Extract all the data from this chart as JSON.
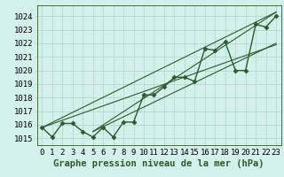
{
  "xlabel": "Graphe pression niveau de la mer (hPa)",
  "bg_color": "#d4f0ea",
  "grid_color": "#aed4cc",
  "line_color": "#2d5a2d",
  "ylim": [
    1014.5,
    1024.8
  ],
  "xlim": [
    -0.5,
    23.5
  ],
  "yticks": [
    1015,
    1016,
    1017,
    1018,
    1019,
    1020,
    1021,
    1022,
    1023,
    1024
  ],
  "xticks": [
    0,
    1,
    2,
    3,
    4,
    5,
    6,
    7,
    8,
    9,
    10,
    11,
    12,
    13,
    14,
    15,
    16,
    17,
    18,
    19,
    20,
    21,
    22,
    23
  ],
  "data_y": [
    1015.8,
    1015.1,
    1016.1,
    1016.1,
    1015.5,
    1015.1,
    1015.8,
    1015.1,
    1016.2,
    1016.2,
    1018.2,
    1018.2,
    1018.8,
    1019.5,
    1019.5,
    1019.2,
    1021.6,
    1021.5,
    1022.1,
    1020.0,
    1020.0,
    1023.4,
    1023.2,
    1024.0
  ],
  "trend_lines": [
    [
      [
        0,
        1015.8
      ],
      [
        23,
        1021.9
      ]
    ],
    [
      [
        0,
        1015.8
      ],
      [
        23,
        1024.3
      ]
    ],
    [
      [
        5,
        1015.5
      ],
      [
        23,
        1022.0
      ]
    ],
    [
      [
        5,
        1015.5
      ],
      [
        23,
        1024.3
      ]
    ]
  ],
  "font_size_label": 7.5,
  "font_size_tick": 6.5,
  "line_width": 1.0,
  "marker_size": 2.5
}
